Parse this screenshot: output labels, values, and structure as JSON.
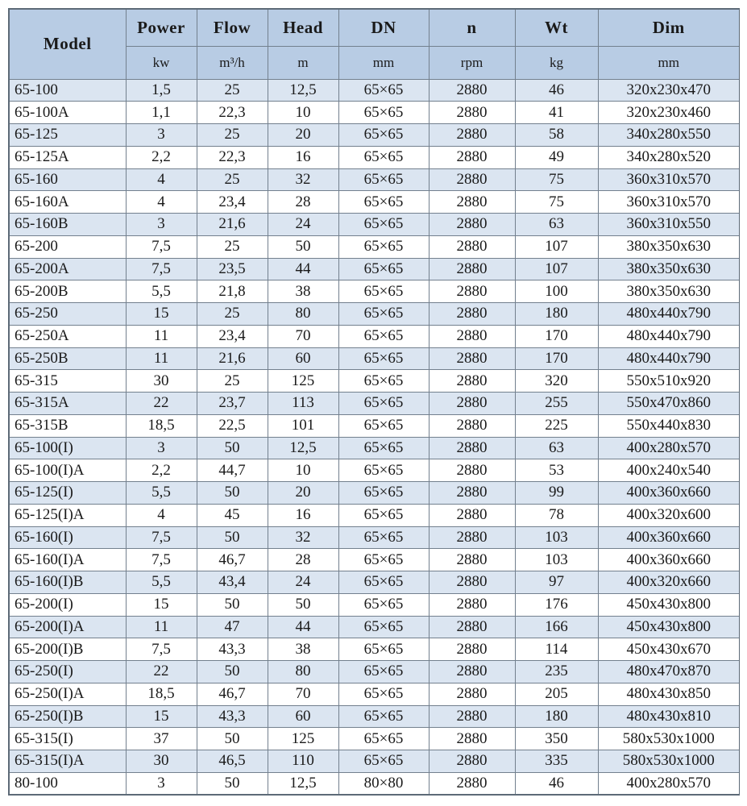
{
  "colors": {
    "header_bg": "#b8cce4",
    "row_alt_bg": "#dbe5f1",
    "row_bg": "#ffffff",
    "border": "#73808e",
    "outer_border": "#5d6a77",
    "text": "#1a1a1a"
  },
  "table": {
    "columns": [
      {
        "key": "model",
        "label": "Model",
        "unit": ""
      },
      {
        "key": "power",
        "label": "Power",
        "unit": "kw"
      },
      {
        "key": "flow",
        "label": "Flow",
        "unit": "m³/h"
      },
      {
        "key": "head",
        "label": "Head",
        "unit": "m"
      },
      {
        "key": "dn",
        "label": "DN",
        "unit": "mm"
      },
      {
        "key": "n",
        "label": "n",
        "unit": "rpm"
      },
      {
        "key": "wt",
        "label": "Wt",
        "unit": "kg"
      },
      {
        "key": "dim",
        "label": "Dim",
        "unit": "mm"
      }
    ],
    "rows": [
      [
        "65-100",
        "1,5",
        "25",
        "12,5",
        "65×65",
        "2880",
        "46",
        "320x230x470"
      ],
      [
        "65-100A",
        "1,1",
        "22,3",
        "10",
        "65×65",
        "2880",
        "41",
        "320x230x460"
      ],
      [
        "65-125",
        "3",
        "25",
        "20",
        "65×65",
        "2880",
        "58",
        "340x280x550"
      ],
      [
        "65-125A",
        "2,2",
        "22,3",
        "16",
        "65×65",
        "2880",
        "49",
        "340x280x520"
      ],
      [
        "65-160",
        "4",
        "25",
        "32",
        "65×65",
        "2880",
        "75",
        "360x310x570"
      ],
      [
        "65-160A",
        "4",
        "23,4",
        "28",
        "65×65",
        "2880",
        "75",
        "360x310x570"
      ],
      [
        "65-160B",
        "3",
        "21,6",
        "24",
        "65×65",
        "2880",
        "63",
        "360x310x550"
      ],
      [
        "65-200",
        "7,5",
        "25",
        "50",
        "65×65",
        "2880",
        "107",
        "380x350x630"
      ],
      [
        "65-200A",
        "7,5",
        "23,5",
        "44",
        "65×65",
        "2880",
        "107",
        "380x350x630"
      ],
      [
        "65-200B",
        "5,5",
        "21,8",
        "38",
        "65×65",
        "2880",
        "100",
        "380x350x630"
      ],
      [
        "65-250",
        "15",
        "25",
        "80",
        "65×65",
        "2880",
        "180",
        "480x440x790"
      ],
      [
        "65-250A",
        "11",
        "23,4",
        "70",
        "65×65",
        "2880",
        "170",
        "480x440x790"
      ],
      [
        "65-250B",
        "11",
        "21,6",
        "60",
        "65×65",
        "2880",
        "170",
        "480x440x790"
      ],
      [
        "65-315",
        "30",
        "25",
        "125",
        "65×65",
        "2880",
        "320",
        "550x510x920"
      ],
      [
        "65-315A",
        "22",
        "23,7",
        "113",
        "65×65",
        "2880",
        "255",
        "550x470x860"
      ],
      [
        "65-315B",
        "18,5",
        "22,5",
        "101",
        "65×65",
        "2880",
        "225",
        "550x440x830"
      ],
      [
        "65-100(I)",
        "3",
        "50",
        "12,5",
        "65×65",
        "2880",
        "63",
        "400x280x570"
      ],
      [
        "65-100(I)A",
        "2,2",
        "44,7",
        "10",
        "65×65",
        "2880",
        "53",
        "400x240x540"
      ],
      [
        "65-125(I)",
        "5,5",
        "50",
        "20",
        "65×65",
        "2880",
        "99",
        "400x360x660"
      ],
      [
        "65-125(I)A",
        "4",
        "45",
        "16",
        "65×65",
        "2880",
        "78",
        "400x320x600"
      ],
      [
        "65-160(I)",
        "7,5",
        "50",
        "32",
        "65×65",
        "2880",
        "103",
        "400x360x660"
      ],
      [
        "65-160(I)A",
        "7,5",
        "46,7",
        "28",
        "65×65",
        "2880",
        "103",
        "400x360x660"
      ],
      [
        "65-160(I)B",
        "5,5",
        "43,4",
        "24",
        "65×65",
        "2880",
        "97",
        "400x320x660"
      ],
      [
        "65-200(I)",
        "15",
        "50",
        "50",
        "65×65",
        "2880",
        "176",
        "450x430x800"
      ],
      [
        "65-200(I)A",
        "11",
        "47",
        "44",
        "65×65",
        "2880",
        "166",
        "450x430x800"
      ],
      [
        "65-200(I)B",
        "7,5",
        "43,3",
        "38",
        "65×65",
        "2880",
        "114",
        "450x430x670"
      ],
      [
        "65-250(I)",
        "22",
        "50",
        "80",
        "65×65",
        "2880",
        "235",
        "480x470x870"
      ],
      [
        "65-250(I)A",
        "18,5",
        "46,7",
        "70",
        "65×65",
        "2880",
        "205",
        "480x430x850"
      ],
      [
        "65-250(I)B",
        "15",
        "43,3",
        "60",
        "65×65",
        "2880",
        "180",
        "480x430x810"
      ],
      [
        "65-315(I)",
        "37",
        "50",
        "125",
        "65×65",
        "2880",
        "350",
        "580x530x1000"
      ],
      [
        "65-315(I)A",
        "30",
        "46,5",
        "110",
        "65×65",
        "2880",
        "335",
        "580x530x1000"
      ],
      [
        "80-100",
        "3",
        "50",
        "12,5",
        "80×80",
        "2880",
        "46",
        "400x280x570"
      ]
    ]
  }
}
